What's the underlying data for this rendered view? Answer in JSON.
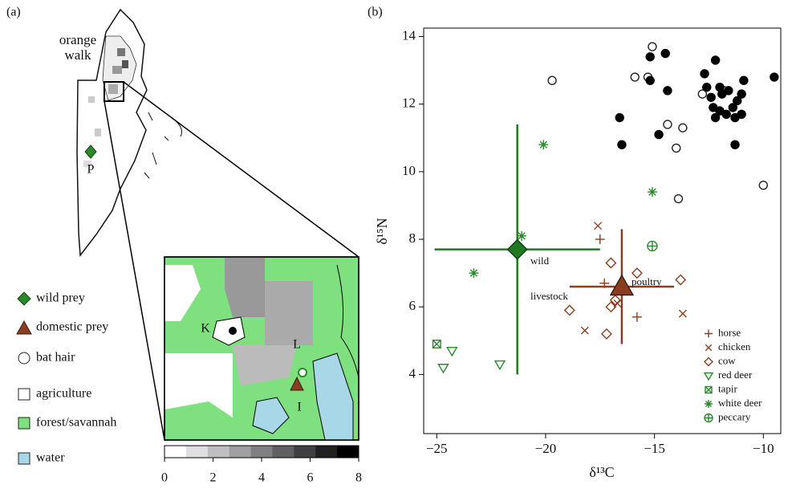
{
  "panel_a": {
    "label": "(a)",
    "place_label": "orange walk",
    "site_labels": [
      "P",
      "K",
      "L",
      "I"
    ],
    "legend": [
      "wild prey",
      "domestic prey",
      "bat hair",
      "agriculture",
      "forest/savannah",
      "water"
    ],
    "colorbar": {
      "lim": [
        0,
        8
      ],
      "ticks": [
        0,
        2,
        4,
        6,
        8
      ]
    }
  },
  "chart_data": {
    "type": "scatter",
    "panel_label": "(b)",
    "x_label": "δ¹³C",
    "y_label": "δ¹⁵N",
    "xlim": [
      -25.6,
      -9.2
    ],
    "ylim": [
      2.25,
      14.25
    ],
    "xticks": [
      {
        "value": -25,
        "label": "−25"
      },
      {
        "value": -20,
        "label": "−20"
      },
      {
        "value": -15,
        "label": "−15"
      },
      {
        "value": -10,
        "label": "−10"
      }
    ],
    "yticks": [
      4,
      6,
      8,
      10,
      12,
      14
    ],
    "legend_corner": "lower right",
    "series": [
      {
        "marker": "open-circle",
        "color": "#222222",
        "x": [
          -19.7,
          -15.1,
          -15.9,
          -15.3,
          -14.4,
          -13.7,
          -14.0,
          -13.9,
          -12.8,
          -10.0,
          -11.8
        ],
        "y": [
          12.7,
          13.7,
          12.8,
          12.8,
          11.4,
          11.3,
          10.7,
          9.2,
          12.3,
          9.6,
          12.4
        ]
      },
      {
        "marker": "filled-circle",
        "color": "#000000",
        "x": [
          -15.2,
          -14.5,
          -15.2,
          -16.6,
          -16.5,
          -14.8,
          -14.4,
          -12.2,
          -12.7,
          -12.0,
          -11.6,
          -11.0,
          -10.9,
          -11.2,
          -11.9,
          -12.4,
          -12.3,
          -12.0,
          -11.7,
          -11.4,
          -11.0,
          -11.3,
          -12.2,
          -11.3,
          -9.5,
          -12.6
        ],
        "y": [
          13.4,
          13.5,
          12.7,
          11.6,
          10.8,
          11.1,
          12.4,
          13.3,
          12.9,
          12.5,
          12.4,
          12.3,
          12.7,
          12.1,
          12.3,
          12.2,
          11.9,
          11.8,
          11.7,
          11.9,
          11.7,
          11.6,
          11.6,
          10.8,
          12.8,
          12.5
        ]
      },
      {
        "name": "horse",
        "marker": "plus",
        "color": "#8b3e1f",
        "x": [
          -17.5,
          -17.3,
          -15.8
        ],
        "y": [
          8.0,
          6.7,
          5.7
        ]
      },
      {
        "name": "chicken",
        "marker": "cross",
        "color": "#8b3e1f",
        "x": [
          -17.6,
          -18.2,
          -13.7,
          -16.7
        ],
        "y": [
          8.4,
          5.3,
          5.8,
          6.1
        ]
      },
      {
        "name": "cow",
        "marker": "open-diamond",
        "color": "#8b3e1f",
        "x": [
          -17.0,
          -15.8,
          -13.8,
          -18.9,
          -17.2,
          -17.0,
          -16.8
        ],
        "y": [
          7.3,
          7.0,
          6.8,
          5.9,
          5.2,
          6.0,
          6.2
        ]
      },
      {
        "name": "red deer",
        "marker": "open-triangle-down",
        "color": "#2a8a2a",
        "x": [
          -24.3,
          -24.7,
          -22.1
        ],
        "y": [
          4.7,
          4.2,
          4.3
        ]
      },
      {
        "name": "tapir",
        "marker": "boxed-cross",
        "color": "#2a8a2a",
        "x": [
          -25.0
        ],
        "y": [
          4.9
        ]
      },
      {
        "name": "white deer",
        "marker": "asterisk",
        "color": "#2a8a2a",
        "x": [
          -20.1,
          -15.1,
          -21.1,
          -23.3
        ],
        "y": [
          10.8,
          9.4,
          8.1,
          7.0
        ]
      },
      {
        "name": "peccary",
        "marker": "circled-plus",
        "color": "#2a8a2a",
        "x": [
          -15.1
        ],
        "y": [
          7.8
        ]
      }
    ],
    "means": [
      {
        "marker": "diamond",
        "color": "#1f7a1f",
        "x": -21.3,
        "y": 7.7,
        "xerr": 3.8,
        "yerr": 3.7
      },
      {
        "marker": "triangle",
        "color": "#8b3e1f",
        "x": -16.5,
        "y": 6.6,
        "xerr": 2.4,
        "yerr": 1.7
      }
    ],
    "annotations": [
      "wild",
      "livestock",
      "poultry"
    ]
  }
}
